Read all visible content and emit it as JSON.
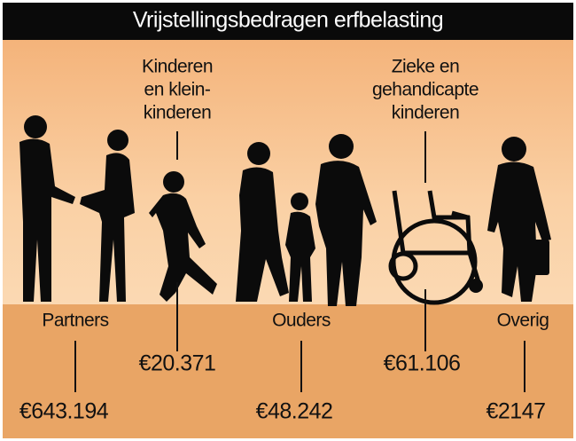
{
  "header": {
    "title": "Vrijstellingsbedragen erfbelasting"
  },
  "groups": [
    {
      "label": [
        "Partners"
      ],
      "amount": "€643.194"
    },
    {
      "label": [
        "Kinderen",
        "en klein-",
        "kinderen"
      ],
      "amount": "€20.371"
    },
    {
      "label": [
        "Ouders"
      ],
      "amount": "€48.242"
    },
    {
      "label": [
        "Zieke en",
        "gehandicapte",
        "kinderen"
      ],
      "amount": "€61.106"
    },
    {
      "label": [
        "Overig"
      ],
      "amount": "€2147"
    }
  ]
}
